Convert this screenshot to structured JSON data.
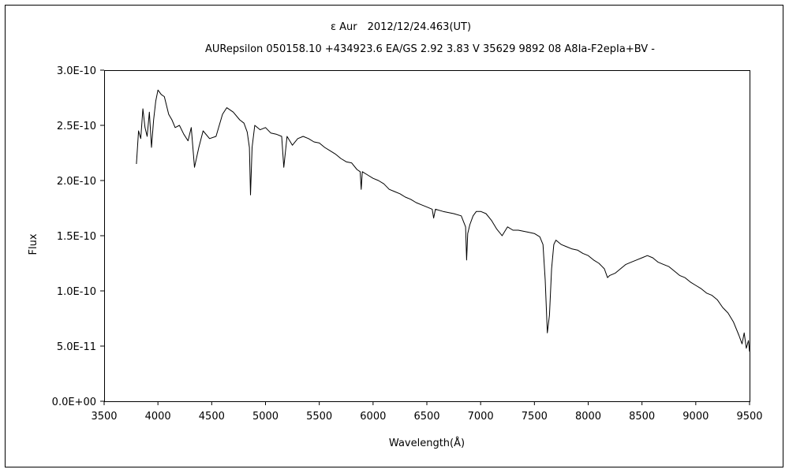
{
  "chart_data": {
    "type": "line",
    "title": "ε Aur　2012/12/24.463(UT)",
    "subtitle": "AURepsilon 050158.10 +434923.6 EA/GS 2.92 3.83 V 35629 9892 08 A8Ia-F2epIa+BV -",
    "xlabel": "Wavelength(Å)",
    "ylabel": "Flux",
    "xlim": [
      3500,
      9500
    ],
    "ylim": [
      0,
      3e-10
    ],
    "x_ticks": [
      3500,
      4000,
      4500,
      5000,
      5500,
      6000,
      6500,
      7000,
      7500,
      8000,
      8500,
      9000,
      9500
    ],
    "x_tick_labels": [
      "3500",
      "4000",
      "4500",
      "5000",
      "5500",
      "6000",
      "6500",
      "7000",
      "7500",
      "8000",
      "8500",
      "9000",
      "9500"
    ],
    "y_ticks": [
      0,
      5e-11,
      1e-10,
      1.5e-10,
      2e-10,
      2.5e-10,
      3e-10
    ],
    "y_tick_labels": [
      "0.0E+00",
      "5.0E-11",
      "1.0E-10",
      "1.5E-10",
      "2.0E-10",
      "2.5E-10",
      "3.0E-10"
    ],
    "grid": false,
    "legend": "none",
    "series": [
      {
        "color": "#000000",
        "x": [
          3800,
          3820,
          3840,
          3860,
          3880,
          3900,
          3920,
          3940,
          3960,
          3980,
          4000,
          4030,
          4060,
          4100,
          4130,
          4160,
          4200,
          4240,
          4280,
          4310,
          4340,
          4380,
          4420,
          4480,
          4540,
          4600,
          4640,
          4700,
          4760,
          4800,
          4830,
          4850,
          4861,
          4875,
          4900,
          4950,
          5000,
          5050,
          5100,
          5150,
          5170,
          5200,
          5250,
          5300,
          5350,
          5400,
          5450,
          5500,
          5550,
          5600,
          5650,
          5700,
          5750,
          5800,
          5850,
          5880,
          5890,
          5900,
          5950,
          6000,
          6050,
          6100,
          6150,
          6200,
          6250,
          6300,
          6350,
          6400,
          6450,
          6500,
          6550,
          6563,
          6580,
          6650,
          6750,
          6820,
          6860,
          6870,
          6880,
          6900,
          6930,
          6960,
          7000,
          7050,
          7100,
          7150,
          7200,
          7250,
          7300,
          7350,
          7400,
          7450,
          7500,
          7550,
          7580,
          7600,
          7620,
          7640,
          7660,
          7680,
          7700,
          7750,
          7800,
          7850,
          7900,
          7950,
          8000,
          8050,
          8100,
          8150,
          8180,
          8200,
          8250,
          8300,
          8350,
          8400,
          8450,
          8500,
          8550,
          8600,
          8650,
          8700,
          8750,
          8800,
          8850,
          8900,
          8950,
          9000,
          9050,
          9100,
          9150,
          9200,
          9250,
          9300,
          9350,
          9400,
          9430,
          9450,
          9470,
          9490,
          9500
        ],
        "y": [
          2.15e-10,
          2.45e-10,
          2.38e-10,
          2.65e-10,
          2.48e-10,
          2.4e-10,
          2.62e-10,
          2.3e-10,
          2.55e-10,
          2.72e-10,
          2.82e-10,
          2.78e-10,
          2.76e-10,
          2.6e-10,
          2.55e-10,
          2.48e-10,
          2.5e-10,
          2.42e-10,
          2.36e-10,
          2.48e-10,
          2.12e-10,
          2.3e-10,
          2.45e-10,
          2.38e-10,
          2.4e-10,
          2.6e-10,
          2.66e-10,
          2.62e-10,
          2.55e-10,
          2.52e-10,
          2.44e-10,
          2.3e-10,
          1.87e-10,
          2.3e-10,
          2.5e-10,
          2.46e-10,
          2.48e-10,
          2.43e-10,
          2.42e-10,
          2.4e-10,
          2.12e-10,
          2.4e-10,
          2.32e-10,
          2.38e-10,
          2.4e-10,
          2.38e-10,
          2.35e-10,
          2.34e-10,
          2.3e-10,
          2.27e-10,
          2.24e-10,
          2.2e-10,
          2.17e-10,
          2.16e-10,
          2.1e-10,
          2.08e-10,
          1.92e-10,
          2.08e-10,
          2.05e-10,
          2.02e-10,
          2e-10,
          1.97e-10,
          1.92e-10,
          1.9e-10,
          1.88e-10,
          1.85e-10,
          1.83e-10,
          1.8e-10,
          1.78e-10,
          1.76e-10,
          1.74e-10,
          1.66e-10,
          1.74e-10,
          1.72e-10,
          1.7e-10,
          1.68e-10,
          1.58e-10,
          1.28e-10,
          1.52e-10,
          1.6e-10,
          1.68e-10,
          1.72e-10,
          1.72e-10,
          1.7e-10,
          1.64e-10,
          1.56e-10,
          1.5e-10,
          1.58e-10,
          1.55e-10,
          1.55e-10,
          1.54e-10,
          1.53e-10,
          1.52e-10,
          1.49e-10,
          1.42e-10,
          1.1e-10,
          6.2e-11,
          7.8e-11,
          1.2e-10,
          1.42e-10,
          1.46e-10,
          1.42e-10,
          1.4e-10,
          1.38e-10,
          1.37e-10,
          1.34e-10,
          1.32e-10,
          1.28e-10,
          1.25e-10,
          1.2e-10,
          1.12e-10,
          1.14e-10,
          1.16e-10,
          1.2e-10,
          1.24e-10,
          1.26e-10,
          1.28e-10,
          1.3e-10,
          1.32e-10,
          1.3e-10,
          1.26e-10,
          1.24e-10,
          1.22e-10,
          1.18e-10,
          1.14e-10,
          1.12e-10,
          1.08e-10,
          1.05e-10,
          1.02e-10,
          9.8e-11,
          9.6e-11,
          9.2e-11,
          8.5e-11,
          8e-11,
          7.2e-11,
          6e-11,
          5.2e-11,
          6.2e-11,
          4.8e-11,
          5.5e-11,
          4.5e-11
        ]
      }
    ]
  }
}
